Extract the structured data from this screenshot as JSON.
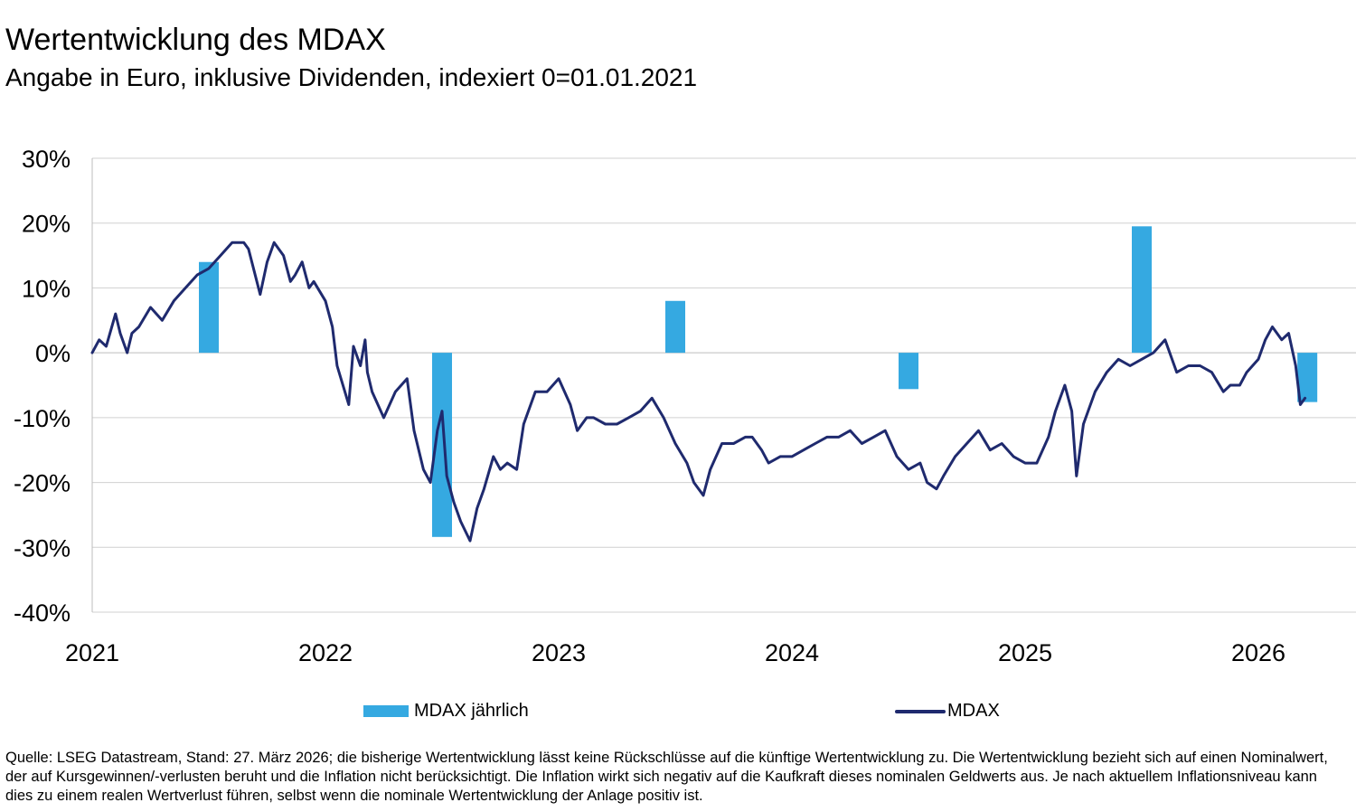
{
  "title": "Wertentwicklung des MDAX",
  "subtitle": "Angabe in Euro, inklusive Dividenden, indexiert 0=01.01.2021",
  "footnote": "Quelle: LSEG Datastream, Stand: 27. März 2026; die bisherige Wertentwicklung lässt keine Rückschlüsse auf die künftige Wertentwicklung zu. Die Wertentwicklung bezieht sich auf einen Nominalwert, der auf Kursgewinnen/-verlusten beruht und die Inflation nicht berücksichtigt. Die Inflation wirkt sich negativ auf die Kaufkraft dieses nominalen Geldwerts aus. Je nach aktuellem Inflationsniveau kann dies zu einem realen Wertverlust führen, selbst wenn die nominale Wertentwicklung der Anlage positiv ist.",
  "colors": {
    "bar": "#35a9e1",
    "line": "#1f2a6e",
    "grid": "#d0d0d0",
    "axis": "#bdbdbd"
  },
  "chart_data": {
    "type": "bar+line",
    "title": "Wertentwicklung des MDAX",
    "ylim": [
      -40,
      30
    ],
    "yticks": [
      30,
      20,
      10,
      0,
      -10,
      -20,
      -30,
      -40
    ],
    "ytick_labels": [
      "30%",
      "20%",
      "10%",
      "0%",
      "-10%",
      "-20%",
      "-30%",
      "-40%"
    ],
    "xlim": [
      2021.0,
      2026.3
    ],
    "xticks": [
      2021,
      2022,
      2023,
      2024,
      2025,
      2026
    ],
    "xtick_labels": [
      "2021",
      "2022",
      "2023",
      "2024",
      "2025",
      "2026"
    ],
    "grid": true,
    "legend": {
      "position": "bottom",
      "entries": [
        "MDAX jährlich",
        "MDAX"
      ]
    },
    "series": [
      {
        "name": "MDAX jährlich",
        "kind": "bar",
        "x": [
          2021.5,
          2022.5,
          2023.5,
          2024.5,
          2025.5,
          2026.21
        ],
        "values": [
          14.0,
          -28.4,
          8.0,
          -5.6,
          19.5,
          -7.6
        ]
      },
      {
        "name": "MDAX",
        "kind": "line",
        "x": [
          2021.0,
          2021.03,
          2021.06,
          2021.1,
          2021.12,
          2021.15,
          2021.17,
          2021.2,
          2021.25,
          2021.3,
          2021.35,
          2021.4,
          2021.45,
          2021.5,
          2021.55,
          2021.6,
          2021.65,
          2021.67,
          2021.72,
          2021.75,
          2021.78,
          2021.82,
          2021.85,
          2021.87,
          2021.9,
          2021.93,
          2021.95,
          2022.0,
          2022.03,
          2022.05,
          2022.1,
          2022.12,
          2022.15,
          2022.17,
          2022.18,
          2022.2,
          2022.25,
          2022.3,
          2022.35,
          2022.38,
          2022.42,
          2022.45,
          2022.48,
          2022.5,
          2022.52,
          2022.55,
          2022.58,
          2022.62,
          2022.65,
          2022.68,
          2022.72,
          2022.75,
          2022.78,
          2022.82,
          2022.85,
          2022.9,
          2022.95,
          2023.0,
          2023.05,
          2023.08,
          2023.12,
          2023.15,
          2023.2,
          2023.25,
          2023.3,
          2023.35,
          2023.4,
          2023.45,
          2023.5,
          2023.55,
          2023.58,
          2023.62,
          2023.65,
          2023.7,
          2023.75,
          2023.8,
          2023.83,
          2023.87,
          2023.9,
          2023.95,
          2024.0,
          2024.05,
          2024.1,
          2024.15,
          2024.2,
          2024.25,
          2024.3,
          2024.35,
          2024.4,
          2024.45,
          2024.5,
          2024.55,
          2024.58,
          2024.62,
          2024.65,
          2024.7,
          2024.75,
          2024.8,
          2024.85,
          2024.9,
          2024.95,
          2025.0,
          2025.05,
          2025.1,
          2025.13,
          2025.15,
          2025.17,
          2025.2,
          2025.22,
          2025.25,
          2025.3,
          2025.35,
          2025.4,
          2025.45,
          2025.5,
          2025.55,
          2025.6,
          2025.65,
          2025.7,
          2025.75,
          2025.8,
          2025.85,
          2025.88,
          2025.92,
          2025.95,
          2026.0,
          2026.03,
          2026.06,
          2026.1,
          2026.13,
          2026.16,
          2026.18,
          2026.2
        ],
        "values": [
          0,
          2,
          1,
          6,
          3,
          0,
          3,
          4,
          7,
          5,
          8,
          10,
          12,
          13,
          15,
          17,
          17,
          16,
          9,
          14,
          17,
          15,
          11,
          12,
          14,
          10,
          11,
          8,
          4,
          -2,
          -8,
          1,
          -2,
          2,
          -3,
          -6,
          -10,
          -6,
          -4,
          -12,
          -18,
          -20,
          -12,
          -9,
          -19,
          -23,
          -26,
          -29,
          -24,
          -21,
          -16,
          -18,
          -17,
          -18,
          -11,
          -6,
          -6,
          -4,
          -8,
          -12,
          -10,
          -10,
          -11,
          -11,
          -10,
          -9,
          -7,
          -10,
          -14,
          -17,
          -20,
          -22,
          -18,
          -14,
          -14,
          -13,
          -13,
          -15,
          -17,
          -16,
          -16,
          -15,
          -14,
          -13,
          -13,
          -12,
          -14,
          -13,
          -12,
          -16,
          -18,
          -17,
          -20,
          -21,
          -19,
          -16,
          -14,
          -12,
          -15,
          -14,
          -16,
          -17,
          -17,
          -13,
          -9,
          -7,
          -5,
          -9,
          -19,
          -11,
          -6,
          -3,
          -1,
          -2,
          -1,
          0,
          2,
          -3,
          -2,
          -2,
          -3,
          -6,
          -5,
          -5,
          -3,
          -1,
          2,
          4,
          2,
          3,
          -2,
          -8,
          -7
        ]
      }
    ]
  }
}
